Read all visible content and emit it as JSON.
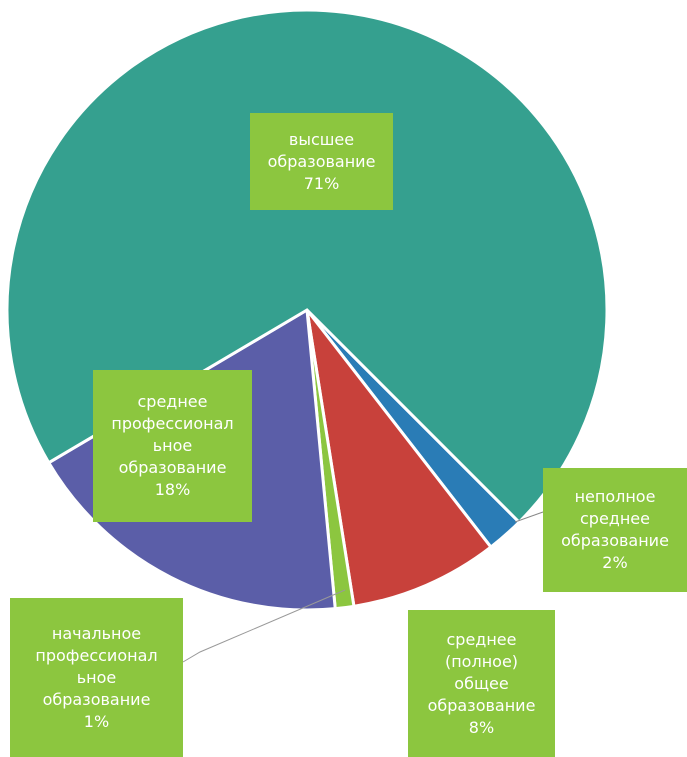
{
  "chart_data": {
    "type": "pie",
    "categories": [
      "неполное\nсреднее\nобразование",
      "среднее\n(полное)\nобщее\nобразование",
      "начальное\nпрофессионал\nьное\nобразование",
      "среднее\nпрофессионал\nьное\nобразование",
      "высшее\nобразование"
    ],
    "values": [
      2,
      8,
      1,
      18,
      71
    ],
    "value_labels": [
      "2%",
      "8%",
      "1%",
      "18%",
      "71%"
    ],
    "colors": [
      "#2a7cb6",
      "#c8413b",
      "#8cc63f",
      "#5b5ea8",
      "#35a08f"
    ]
  }
}
